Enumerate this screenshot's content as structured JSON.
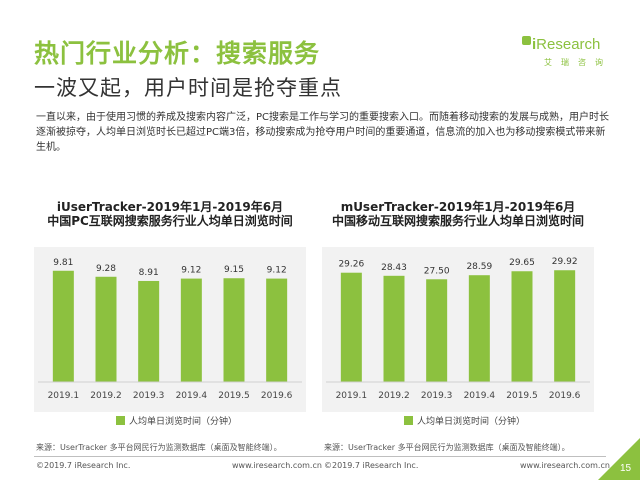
{
  "header": {
    "title": "热门行业分析：搜索服务",
    "subtitle": "一波又起，用户时间是抢夺重点"
  },
  "logo": {
    "wordmark_i": "i",
    "wordmark_rest": "Research",
    "chinese": "艾瑞咨询"
  },
  "body_text": "一直以来，由于使用习惯的养成及搜索内容广泛，PC搜索是工作与学习的重要搜索入口。而随着移动搜索的发展与成熟，用户时长逐渐被掠夺，人均单日浏览时长已超过PC端3倍，移动搜索成为抢夺用户时间的重要通道，信息流的加入也为移动搜索模式带来新生机。",
  "colors": {
    "accent": "#8cc13f",
    "bar": "#8cc13f",
    "plot_background": "#f2f2f2"
  },
  "chart_data": [
    {
      "type": "bar",
      "title": "iUserTracker-2019年1月-2019年6月",
      "subtitle": "中国PC互联网搜索服务行业人均单日浏览时间",
      "categories": [
        "2019.1",
        "2019.2",
        "2019.3",
        "2019.4",
        "2019.5",
        "2019.6"
      ],
      "series": [
        {
          "name": "人均单日浏览时间（分钟）",
          "values": [
            9.81,
            9.28,
            8.91,
            9.12,
            9.15,
            9.12
          ]
        }
      ],
      "value_labels": [
        "9.81",
        "9.28",
        "8.91",
        "9.12",
        "9.15",
        "9.12"
      ],
      "ylim": [
        0,
        11.2
      ],
      "grid": false,
      "legend": "bottom-center",
      "source": "来源：UserTracker 多平台网民行为监测数据库（桌面及智能终端）。"
    },
    {
      "type": "bar",
      "title": "mUserTracker-2019年1月-2019年6月",
      "subtitle": "中国移动互联网搜索服务行业人均单日浏览时间",
      "categories": [
        "2019.1",
        "2019.2",
        "2019.3",
        "2019.4",
        "2019.5",
        "2019.6"
      ],
      "series": [
        {
          "name": "人均单日浏览时间（分钟）",
          "values": [
            29.26,
            28.43,
            27.5,
            28.59,
            29.65,
            29.92
          ]
        }
      ],
      "value_labels": [
        "29.26",
        "28.43",
        "27.50",
        "28.59",
        "29.65",
        "29.92"
      ],
      "ylim": [
        0,
        34
      ],
      "grid": false,
      "legend": "bottom-center",
      "source": "来源：UserTracker 多平台网民行为监测数据库（桌面及智能终端）。"
    }
  ],
  "footer": {
    "copyright": "©2019.7 iResearch Inc.",
    "website": "www.iresearch.com.cn",
    "page_number": "15"
  }
}
